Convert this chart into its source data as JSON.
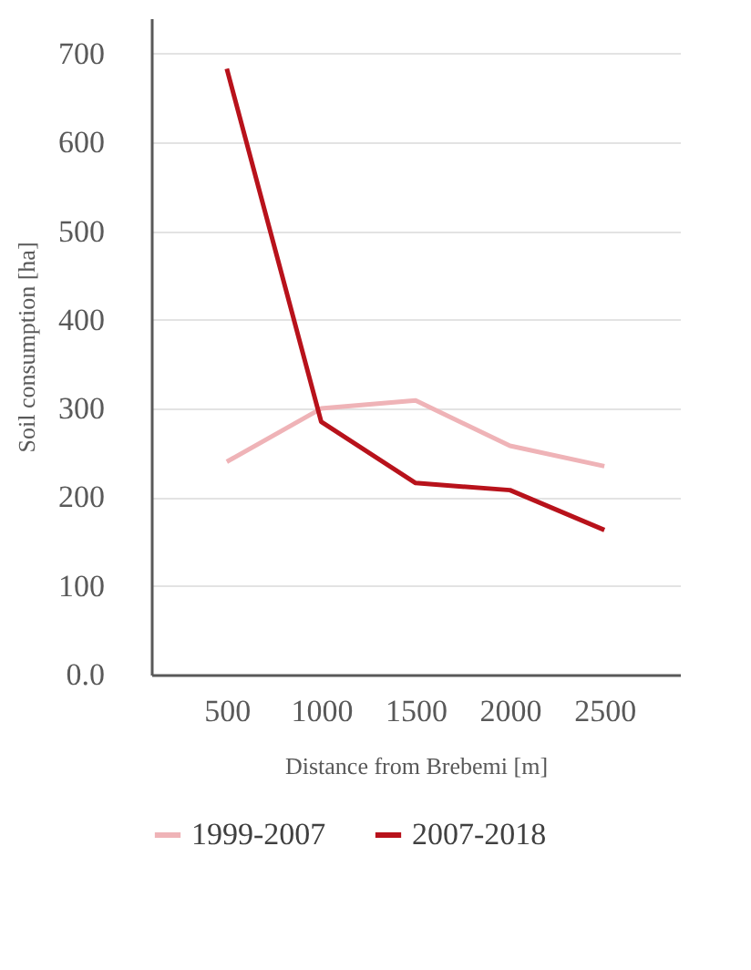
{
  "chart_data": {
    "type": "line",
    "xlabel": "Distance from Brebemi [m]",
    "ylabel": "Soil consumption [ha]",
    "categories": [
      "500",
      "1000",
      "1500",
      "2000",
      "2500"
    ],
    "series": [
      {
        "name": "1999-2007",
        "color": "#efb3b7",
        "values": [
          240,
          300,
          309,
          258,
          235
        ]
      },
      {
        "name": "2007-2018",
        "color": "#b8121b",
        "values": [
          683,
          285,
          216,
          208,
          163
        ]
      }
    ],
    "ylim": [
      0,
      740
    ],
    "yticks": [
      {
        "value": 0,
        "label": "0.0"
      },
      100,
      200,
      300,
      400,
      500,
      600,
      700
    ],
    "grid": "y",
    "legend": "bottom",
    "marker": "none",
    "line_style": "solid"
  }
}
